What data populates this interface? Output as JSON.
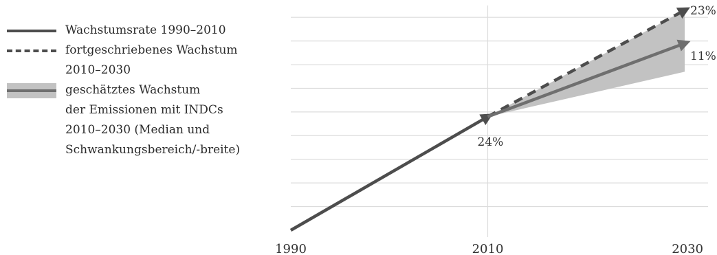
{
  "legend": {
    "items": [
      {
        "kind": "solid",
        "lines": [
          "Wachstumsrate 1990–2010"
        ]
      },
      {
        "kind": "dashed",
        "lines": [
          "fortgeschriebenes Wachstum",
          "2010–2030"
        ]
      },
      {
        "kind": "band",
        "lines": [
          "geschätztes Wachstum",
          "der Emissionen mit INDCs",
          "2010–2030 (Median und",
          "Schwankungsbereich/-breite)"
        ]
      }
    ]
  },
  "chart_data": {
    "type": "line",
    "title": "",
    "xlabel": "",
    "ylabel": "",
    "x_ticks": [
      "1990",
      "2010",
      "2030"
    ],
    "xlim": [
      1990,
      2030
    ],
    "ylim": [
      0,
      9.5
    ],
    "grid": true,
    "legend_position": "left",
    "colors": {
      "solid": "#4d4d4d",
      "dashed": "#4d4d4d",
      "median": "#6f6f6f",
      "band": "#c2c2c2",
      "grid": "#dcdcdc"
    },
    "series": [
      {
        "name": "Wachstumsrate 1990–2010",
        "style": "solid",
        "x": [
          1990,
          2010
        ],
        "y": [
          0,
          4.8
        ]
      },
      {
        "name": "fortgeschriebenes Wachstum 2010–2030",
        "style": "dashed",
        "x": [
          2010,
          2030
        ],
        "y": [
          4.8,
          9.3
        ]
      },
      {
        "name": "geschätztes Wachstum der Emissionen mit INDCs 2010–2030 (Median)",
        "style": "solid",
        "x": [
          2010,
          2030
        ],
        "y": [
          4.8,
          7.9
        ]
      }
    ],
    "band": {
      "x": [
        2010,
        2030
      ],
      "y_low": [
        4.8,
        6.7
      ],
      "y_high": [
        4.8,
        9.3
      ]
    },
    "annotations": [
      {
        "text": "24%",
        "x": 2010,
        "y": 4.8,
        "position": "below"
      },
      {
        "text": "23%",
        "x": 2030,
        "y": 9.3,
        "position": "right"
      },
      {
        "text": "11%",
        "x": 2030,
        "y": 7.9,
        "position": "right"
      }
    ]
  }
}
